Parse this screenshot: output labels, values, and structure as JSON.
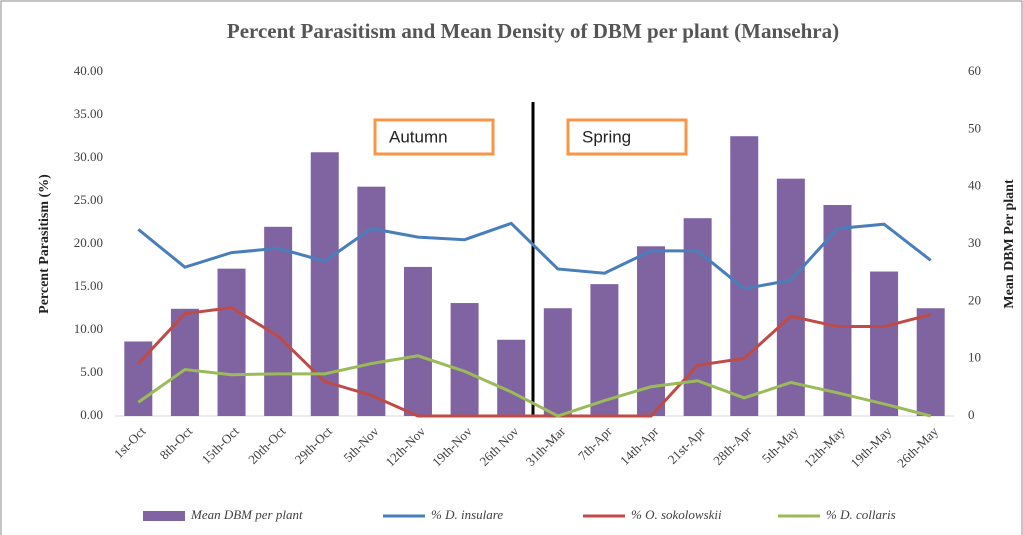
{
  "chart_data": {
    "type": "combo",
    "title": "Percent Parasitism and Mean Density of DBM per plant (Mansehra)",
    "y_label": "Percent Parasitism (%)",
    "y2_label": "Mean DBM Per plant",
    "categories": [
      "1st-Oct",
      "8th-Oct",
      "15th-Oct",
      "20th-Oct",
      "29th-Oct",
      "5th-Nov",
      "12th-Nov",
      "19th-Nov",
      "26th Nov",
      "31th-Mar",
      "7th-Apr",
      "14th-Apr",
      "21st-Apr",
      "28th-Apr",
      "5th-May",
      "12th-May",
      "19th-May",
      "26th-May"
    ],
    "series": [
      {
        "name": "Mean DBM per plant",
        "type": "bar",
        "axis": "y2",
        "color": "#8064a2",
        "values": [
          13,
          18.7,
          25.7,
          33,
          46,
          40,
          26,
          19.7,
          13.3,
          18.8,
          23,
          29.6,
          34.5,
          48.8,
          41.4,
          36.8,
          25.2,
          18.8
        ]
      },
      {
        "name": "% D. insulare",
        "type": "line",
        "color": "#4a7ebb",
        "values": [
          21.7,
          17.3,
          19,
          19.5,
          18,
          21.8,
          20.8,
          20.5,
          22.4,
          17.1,
          16.6,
          19.2,
          19.2,
          14.8,
          15.8,
          21.8,
          22.3,
          18.1
        ]
      },
      {
        "name": "% O. sokolowskii",
        "type": "line",
        "color": "#be4b48",
        "values": [
          6.1,
          11.9,
          12.6,
          9.3,
          4,
          2.4,
          0,
          0,
          0,
          0,
          0,
          0,
          5.9,
          6.7,
          11.6,
          10.4,
          10.4,
          11.8
        ]
      },
      {
        "name": "% D. collaris",
        "type": "line",
        "color": "#9bbb59",
        "values": [
          1.6,
          5.4,
          4.8,
          4.9,
          4.9,
          6.1,
          7,
          5.2,
          2.8,
          0,
          1.8,
          3.4,
          4.1,
          2.1,
          3.9,
          2.7,
          1.4,
          0
        ]
      }
    ],
    "ylim": [
      0,
      40
    ],
    "yticks": [
      {
        "value": 0,
        "label": "0.00"
      },
      {
        "value": 5,
        "label": "5.00"
      },
      {
        "value": 10,
        "label": "10.00"
      },
      {
        "value": 15,
        "label": "15.00"
      },
      {
        "value": 20,
        "label": "20.00"
      },
      {
        "value": 25,
        "label": "25.00"
      },
      {
        "value": 30,
        "label": "30.00"
      },
      {
        "value": 35,
        "label": "35.00"
      },
      {
        "value": 40,
        "label": "40.00"
      }
    ],
    "y2lim": [
      0,
      60
    ],
    "y2ticks": [
      0,
      10,
      20,
      30,
      40,
      50,
      60
    ],
    "annotations": [
      {
        "text": "Autumn"
      },
      {
        "text": "Spring"
      }
    ],
    "legend": "bottom"
  }
}
